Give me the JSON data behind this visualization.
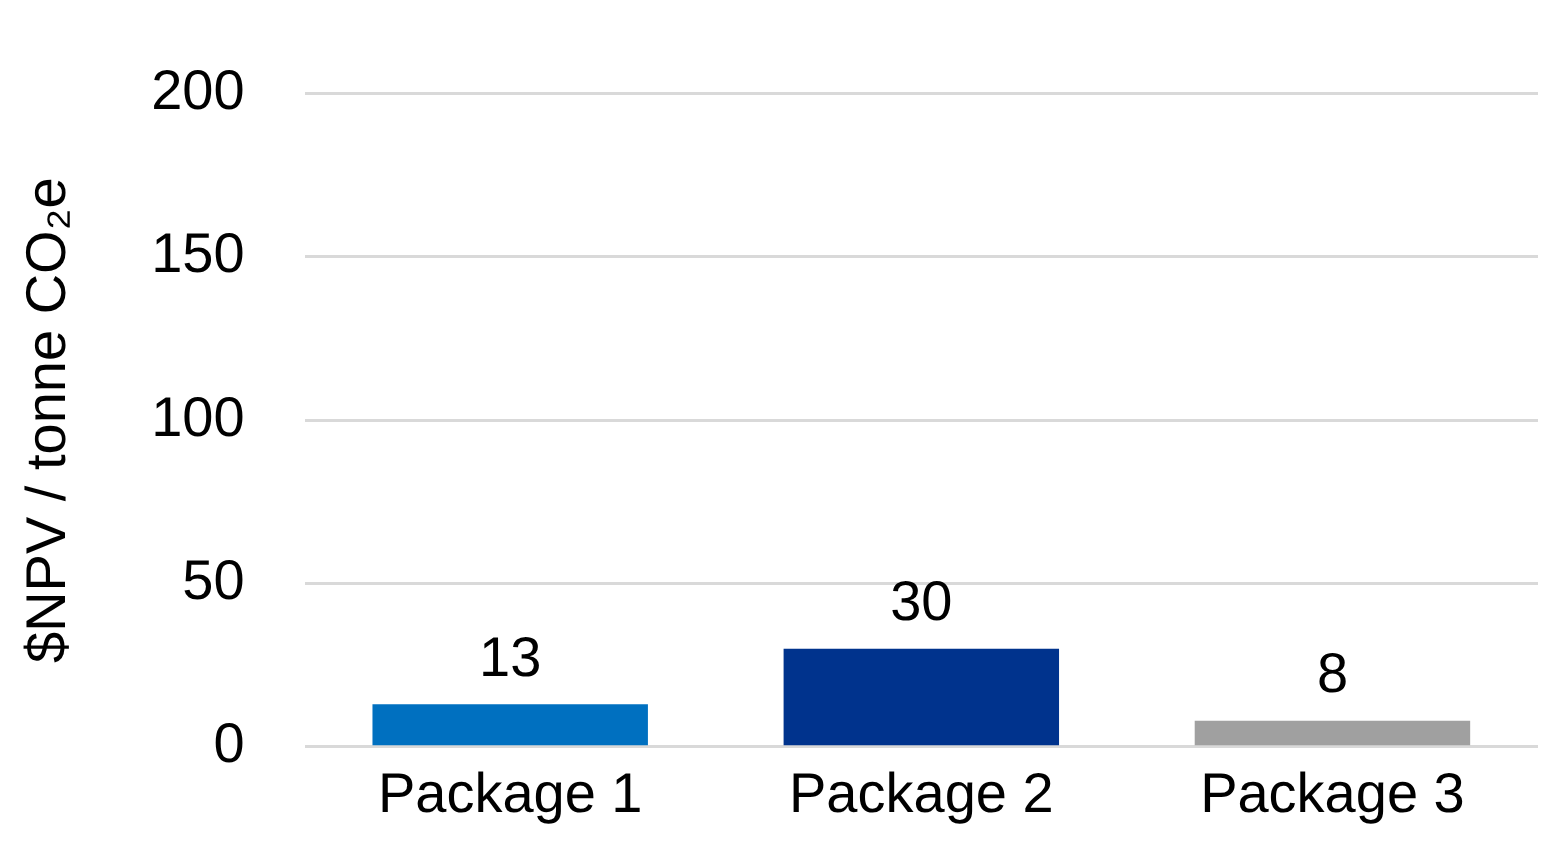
{
  "chart_data": {
    "type": "bar",
    "ylabel": "$NPV / tonne CO₂e",
    "categories": [
      "Package 1",
      "Package 2",
      "Package 3"
    ],
    "values": [
      13,
      30,
      8
    ],
    "colors": [
      "#0070c0",
      "#00338d",
      "#a0a0a0"
    ],
    "ylim": [
      0,
      200
    ],
    "yticks": [
      0,
      50,
      100,
      150,
      200
    ],
    "grid": "y",
    "data_labels": true
  }
}
